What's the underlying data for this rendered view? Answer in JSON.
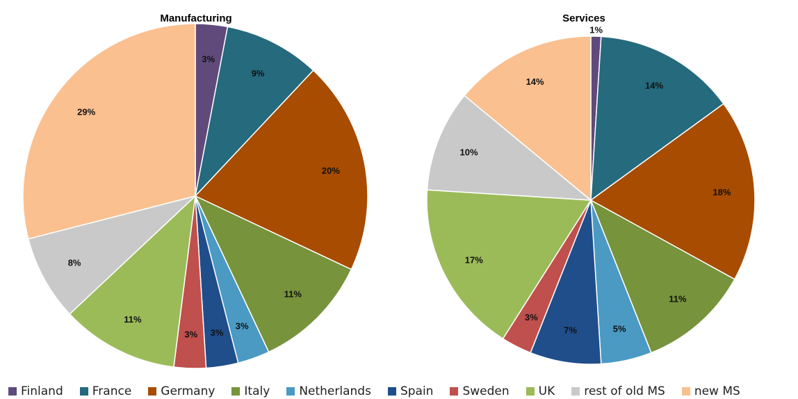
{
  "chart_data": [
    {
      "type": "pie",
      "title": "Manufacturing",
      "slices": [
        {
          "label": "Finland",
          "value": 3,
          "text": "3%"
        },
        {
          "label": "France",
          "value": 9,
          "text": "9%"
        },
        {
          "label": "Germany",
          "value": 20,
          "text": "20%"
        },
        {
          "label": "Italy",
          "value": 11,
          "text": "11%"
        },
        {
          "label": "Netherlands",
          "value": 3,
          "text": "3%"
        },
        {
          "label": "Spain",
          "value": 3,
          "text": "3%"
        },
        {
          "label": "Sweden",
          "value": 3,
          "text": "3%"
        },
        {
          "label": "UK",
          "value": 11,
          "text": "11%"
        },
        {
          "label": "rest of old MS",
          "value": 8,
          "text": "8%"
        },
        {
          "label": "new MS",
          "value": 29,
          "text": "29%"
        }
      ]
    },
    {
      "type": "pie",
      "title": "Services",
      "slices": [
        {
          "label": "Finland",
          "value": 1,
          "text": "1%"
        },
        {
          "label": "France",
          "value": 14,
          "text": "14%"
        },
        {
          "label": "Germany",
          "value": 18,
          "text": "18%"
        },
        {
          "label": "Italy",
          "value": 11,
          "text": "11%"
        },
        {
          "label": "Netherlands",
          "value": 5,
          "text": "5%"
        },
        {
          "label": "Spain",
          "value": 7,
          "text": "7%"
        },
        {
          "label": "Sweden",
          "value": 3,
          "text": "3%"
        },
        {
          "label": "UK",
          "value": 17,
          "text": "17%"
        },
        {
          "label": "rest of old MS",
          "value": 10,
          "text": "10%"
        },
        {
          "label": "new MS",
          "value": 14,
          "text": "14%"
        }
      ]
    }
  ],
  "legend": [
    {
      "label": "Finland",
      "color": "#604a7b"
    },
    {
      "label": "France",
      "color": "#256a7d"
    },
    {
      "label": "Germany",
      "color": "#a74c00"
    },
    {
      "label": "Italy",
      "color": "#77933c"
    },
    {
      "label": "Netherlands",
      "color": "#4a9ac4"
    },
    {
      "label": "Spain",
      "color": "#1f4e8a"
    },
    {
      "label": "Sweden",
      "color": "#c0504d"
    },
    {
      "label": "UK",
      "color": "#9bbb59"
    },
    {
      "label": "rest of old MS",
      "color": "#c9c9c9"
    },
    {
      "label": "new MS",
      "color": "#fac090"
    }
  ]
}
